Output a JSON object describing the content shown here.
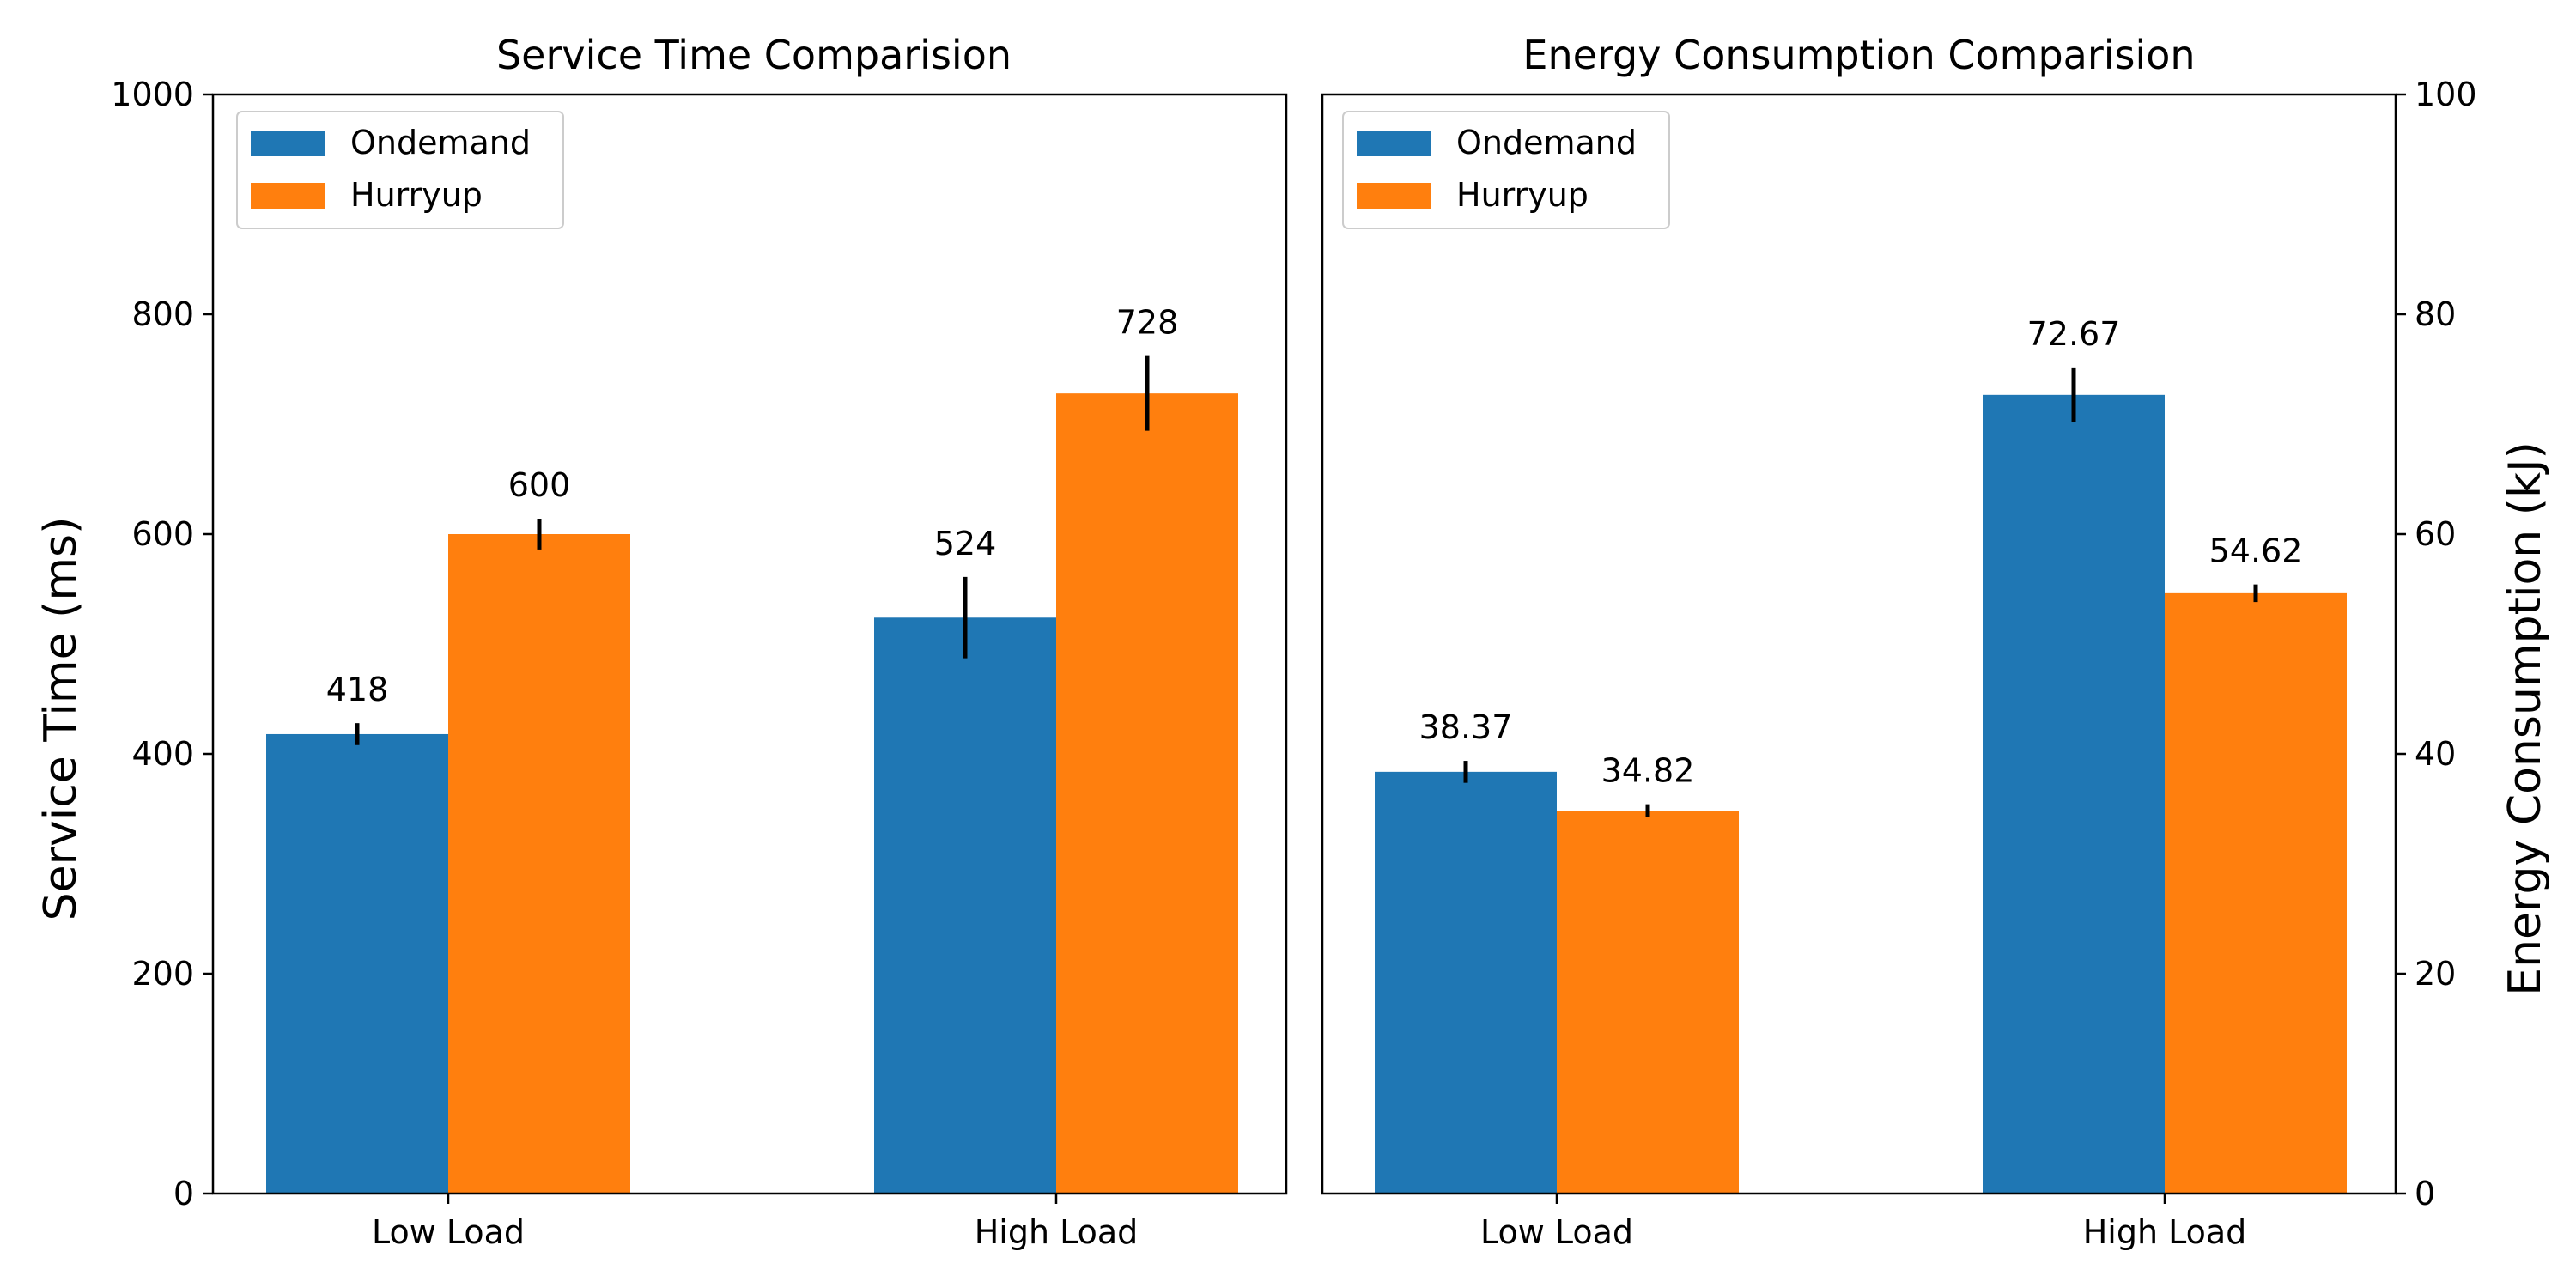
{
  "chart_data": [
    {
      "type": "bar",
      "title": "Service Time Comparision",
      "xlabel": "",
      "ylabel": "Service Time (ms)",
      "categories": [
        "Low Load",
        "High Load"
      ],
      "series": [
        {
          "name": "Ondemand",
          "values": [
            418,
            524
          ],
          "errors": [
            10,
            37
          ],
          "labels": [
            "418",
            "524"
          ]
        },
        {
          "name": "Hurryup",
          "values": [
            600,
            728
          ],
          "errors": [
            14,
            34
          ],
          "labels": [
            "600",
            "728"
          ]
        }
      ],
      "ylim": [
        0,
        1000
      ],
      "yticks": [
        "0",
        "200",
        "400",
        "600",
        "800",
        "1000"
      ],
      "y_axis_side": "left",
      "legend_position": "top-left",
      "grid": false
    },
    {
      "type": "bar",
      "title": "Energy Consumption Comparision",
      "xlabel": "",
      "ylabel": "Energy Consumption (kJ)",
      "categories": [
        "Low Load",
        "High Load"
      ],
      "series": [
        {
          "name": "Ondemand",
          "values": [
            38.37,
            72.67
          ],
          "errors": [
            1.0,
            2.5
          ],
          "labels": [
            "38.37",
            "72.67"
          ]
        },
        {
          "name": "Hurryup",
          "values": [
            34.82,
            54.62
          ],
          "errors": [
            0.6,
            0.8
          ],
          "labels": [
            "34.82",
            "54.62"
          ]
        }
      ],
      "ylim": [
        0,
        100
      ],
      "yticks": [
        "0",
        "20",
        "40",
        "60",
        "80",
        "100"
      ],
      "y_axis_side": "right",
      "legend_position": "top-left",
      "grid": false
    }
  ],
  "colors": {
    "Ondemand": "#1f77b4",
    "Hurryup": "#ff7f0e"
  }
}
